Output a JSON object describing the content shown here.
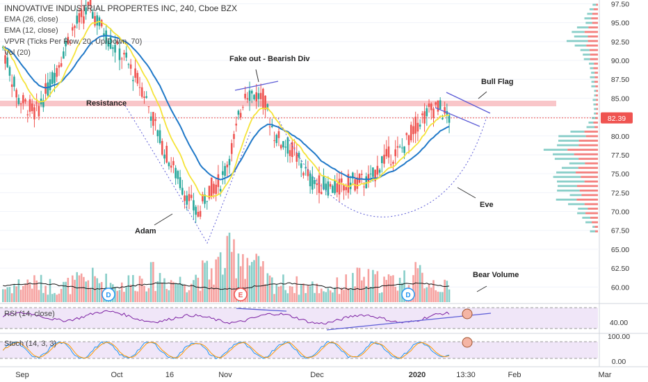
{
  "header": {
    "title": "INNOVATIVE INDUSTRIAL PROPERTES INC, 240, Cboe BZX",
    "indicators": [
      "EMA (26, close)",
      "EMA (12, close)",
      "VPVR (Ticks Per Row, 20, Up/Down, 70)",
      "Vol (20)"
    ]
  },
  "annotations": {
    "fakeout": "Fake out - Bearish Div",
    "resistance": "Resistance",
    "bull_flag": "Bull Flag",
    "adam": "Adam",
    "eve": "Eve",
    "bear_volume": "Bear Volume"
  },
  "panes": {
    "rsi_label": "RSI (14, close)",
    "stoch_label": "Stoch (14, 3, 3)"
  },
  "price_axis": {
    "labels": [
      "97.50",
      "95.00",
      "92.50",
      "90.00",
      "87.50",
      "85.00",
      "82.50",
      "80.00",
      "77.50",
      "75.00",
      "72.50",
      "70.00",
      "67.50",
      "65.00",
      "62.50",
      "60.00"
    ],
    "current_price": "82.39",
    "rsi_label": "40.00",
    "stoch_labels": [
      "100.00",
      "0.00"
    ]
  },
  "time_axis": {
    "labels": [
      "Sep",
      "Oct",
      "16",
      "Nov",
      "Dec",
      "2020",
      "13:30",
      "Feb",
      "Mar"
    ]
  },
  "event_markers": [
    "D",
    "E",
    "D"
  ],
  "colors": {
    "up": "#26a69a",
    "down": "#ef5350",
    "ema26": "#1f78c8",
    "ema12": "#f5e339",
    "resistance": "#f9c6c9",
    "annotation_line": "#5b5bd6",
    "rsi": "#7b1fa2",
    "stoch_k": "#2196f3",
    "stoch_d": "#ff9800"
  },
  "chart_data": {
    "type": "candlestick",
    "price_axis_range": [
      58,
      98
    ],
    "resistance_level": 84.3,
    "current_price": 82.39,
    "price_path": [
      [
        0,
        93
      ],
      [
        0.03,
        85
      ],
      [
        0.06,
        83
      ],
      [
        0.09,
        88
      ],
      [
        0.12,
        94
      ],
      [
        0.15,
        97
      ],
      [
        0.18,
        93
      ],
      [
        0.21,
        90
      ],
      [
        0.24,
        86
      ],
      [
        0.27,
        79
      ],
      [
        0.3,
        74
      ],
      [
        0.33,
        69.5
      ],
      [
        0.35,
        73
      ],
      [
        0.37,
        74
      ],
      [
        0.39,
        79
      ],
      [
        0.41,
        86
      ],
      [
        0.44,
        85
      ],
      [
        0.46,
        80
      ],
      [
        0.49,
        78
      ],
      [
        0.52,
        74
      ],
      [
        0.56,
        73
      ],
      [
        0.59,
        74
      ],
      [
        0.62,
        74
      ],
      [
        0.64,
        77
      ],
      [
        0.67,
        78
      ],
      [
        0.7,
        82
      ],
      [
        0.73,
        84
      ],
      [
        0.75,
        82.4
      ]
    ],
    "volume_axis_max": 100,
    "volume_path": [
      [
        0,
        20
      ],
      [
        0.05,
        30
      ],
      [
        0.1,
        22
      ],
      [
        0.15,
        35
      ],
      [
        0.2,
        25
      ],
      [
        0.25,
        40
      ],
      [
        0.3,
        30
      ],
      [
        0.35,
        45
      ],
      [
        0.4,
        80
      ],
      [
        0.45,
        30
      ],
      [
        0.5,
        25
      ],
      [
        0.55,
        20
      ],
      [
        0.6,
        35
      ],
      [
        0.65,
        30
      ],
      [
        0.7,
        40
      ],
      [
        0.75,
        20
      ]
    ],
    "rsi_range": [
      0,
      100
    ],
    "stoch_range": [
      0,
      100
    ]
  }
}
